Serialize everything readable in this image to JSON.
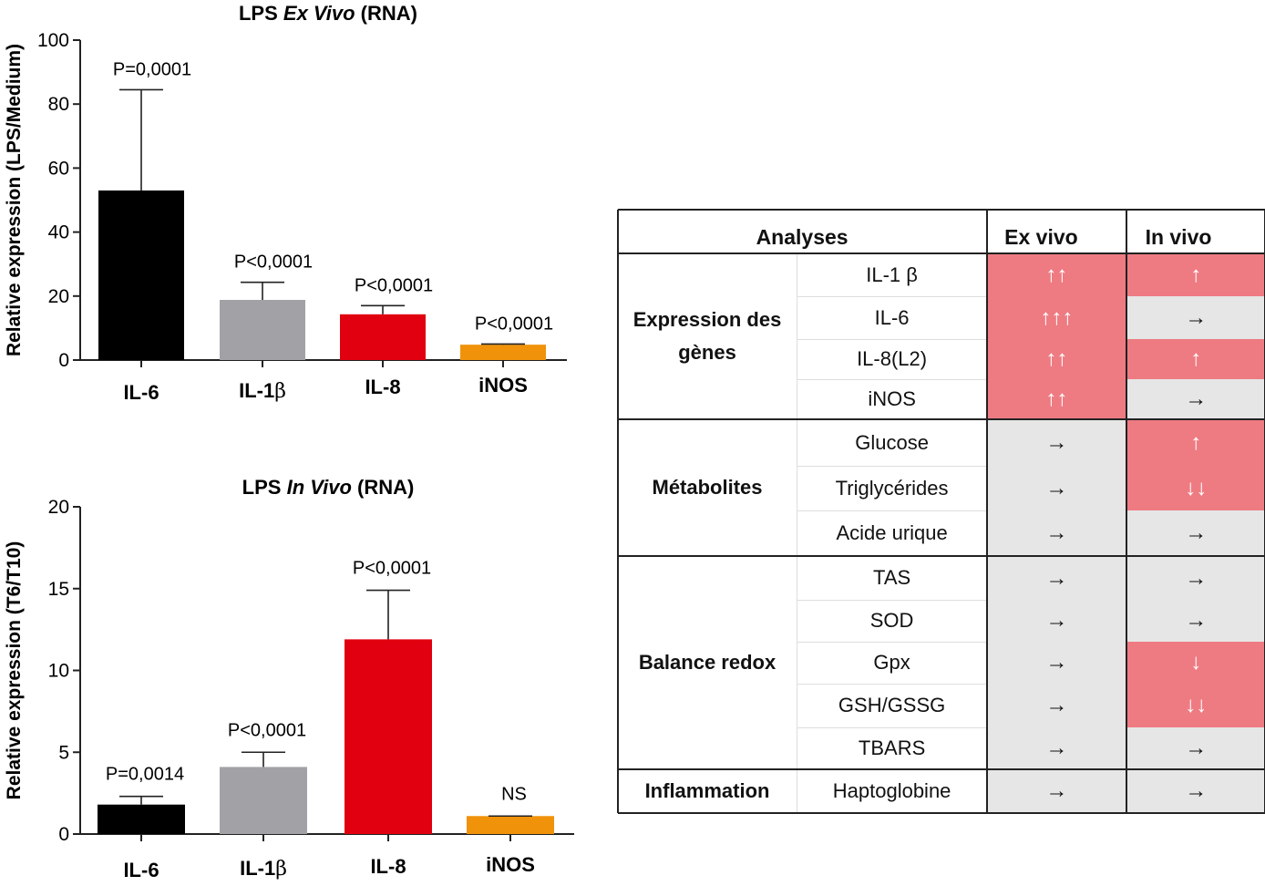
{
  "chart_data": [
    {
      "type": "bar",
      "title_parts": [
        "LPS ",
        "Ex Vivo",
        " (RNA)"
      ],
      "ylabel": "Relative expression (LPS/Medium)",
      "ylim": [
        0,
        100
      ],
      "yticks": [
        "0",
        "20",
        "40",
        "60",
        "80",
        "100"
      ],
      "categories": [
        {
          "base": "IL-6",
          "greek": ""
        },
        {
          "base": "IL-1",
          "greek": "β"
        },
        {
          "base": "IL-8",
          "greek": ""
        },
        {
          "base": "iNOS",
          "greek": ""
        }
      ],
      "values": [
        53,
        18.8,
        14.3,
        4.8
      ],
      "errors": [
        84.5,
        24.3,
        17.0,
        5.0
      ],
      "labels": [
        "P=0,0001",
        "P<0,0001",
        "P<0,0001",
        "P<0,0001"
      ],
      "colors": [
        "#000000",
        "#a2a2a6",
        "#e0000f",
        "#f0920a"
      ]
    },
    {
      "type": "bar",
      "title_parts": [
        "LPS ",
        "In Vivo",
        " (RNA)"
      ],
      "ylabel": "Relative expression (T6/T10)",
      "ylim": [
        0,
        20
      ],
      "yticks": [
        "0",
        "5",
        "10",
        "15",
        "20"
      ],
      "categories": [
        {
          "base": "IL-6",
          "greek": ""
        },
        {
          "base": "IL-1",
          "greek": "β"
        },
        {
          "base": "IL-8",
          "greek": ""
        },
        {
          "base": "iNOS",
          "greek": ""
        }
      ],
      "values": [
        1.8,
        4.1,
        11.9,
        1.1
      ],
      "errors": [
        2.3,
        5.0,
        14.9,
        1.1
      ],
      "labels": [
        "P=0,0014",
        "P<0,0001",
        "P<0,0001",
        "NS"
      ],
      "colors": [
        "#000000",
        "#a2a2a6",
        "#e0000f",
        "#f0920a"
      ]
    }
  ],
  "table": {
    "headers": {
      "analyses": "Analyses",
      "ex_vivo": "Ex vivo",
      "in_vivo": "In vivo"
    },
    "groups": [
      {
        "label": "Expression des gènes",
        "rows": [
          {
            "name": "IL-1 β",
            "ex": "↑↑",
            "ex_up": true,
            "inv": "↑",
            "inv_up": true
          },
          {
            "name": "IL-6",
            "ex": "↑↑↑",
            "ex_up": true,
            "inv": "→",
            "inv_up": false
          },
          {
            "name": "IL-8(L2)",
            "ex": "↑↑",
            "ex_up": true,
            "inv": "↑",
            "inv_up": true
          },
          {
            "name": "iNOS",
            "ex": "↑↑",
            "ex_up": true,
            "inv": "→",
            "inv_up": false
          }
        ]
      },
      {
        "label": "Métabolites",
        "rows": [
          {
            "name": "Glucose",
            "ex": "→",
            "ex_up": false,
            "inv": "↑",
            "inv_up": true
          },
          {
            "name": "Triglycérides",
            "ex": "→",
            "ex_up": false,
            "inv": "↓↓",
            "inv_up": true
          },
          {
            "name": "Acide urique",
            "ex": "→",
            "ex_up": false,
            "inv": "→",
            "inv_up": false
          }
        ]
      },
      {
        "label": "Balance redox",
        "rows": [
          {
            "name": "TAS",
            "ex": "→",
            "ex_up": false,
            "inv": "→",
            "inv_up": false
          },
          {
            "name": "SOD",
            "ex": "→",
            "ex_up": false,
            "inv": "→",
            "inv_up": false
          },
          {
            "name": "Gpx",
            "ex": "→",
            "ex_up": false,
            "inv": "↓",
            "inv_up": true
          },
          {
            "name": "GSH/GSSG",
            "ex": "→",
            "ex_up": false,
            "inv": "↓↓",
            "inv_up": true
          },
          {
            "name": "TBARS",
            "ex": "→",
            "ex_up": false,
            "inv": "→",
            "inv_up": false
          }
        ]
      },
      {
        "label": "Inflammation",
        "rows": [
          {
            "name": "Haptoglobine",
            "ex": "→",
            "ex_up": false,
            "inv": "→",
            "inv_up": false
          }
        ]
      }
    ]
  }
}
